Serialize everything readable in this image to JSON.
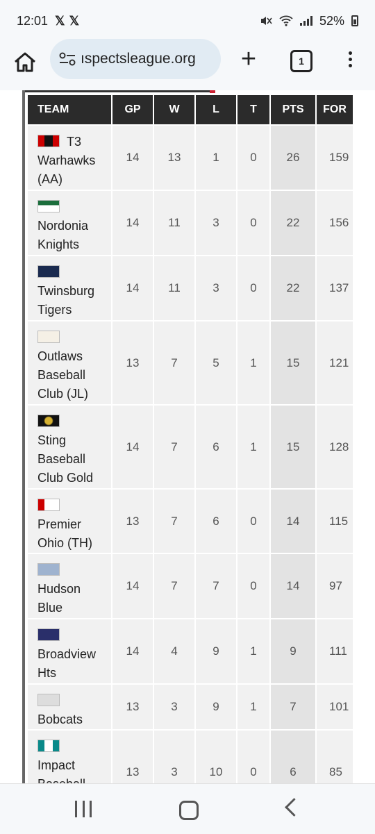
{
  "status_bar": {
    "time": "12:01",
    "x_icons": [
      "𝕏",
      "𝕏"
    ],
    "battery": "52%"
  },
  "browser": {
    "url": "ıspectsleague.org",
    "tab_count": "1",
    "new_tab": "+"
  },
  "table": {
    "headers": [
      "TEAM",
      "GP",
      "W",
      "L",
      "T",
      "PTS",
      "FOR"
    ],
    "rows": [
      {
        "name": "T3 Warhawks (AA)",
        "gp": "14",
        "w": "13",
        "l": "1",
        "t": "0",
        "pts": "26",
        "for": "159"
      },
      {
        "name": "Nordonia Knights",
        "gp": "14",
        "w": "11",
        "l": "3",
        "t": "0",
        "pts": "22",
        "for": "156"
      },
      {
        "name": "Twinsburg Tigers",
        "gp": "14",
        "w": "11",
        "l": "3",
        "t": "0",
        "pts": "22",
        "for": "137"
      },
      {
        "name": "Outlaws Baseball Club (JL)",
        "gp": "13",
        "w": "7",
        "l": "5",
        "t": "1",
        "pts": "15",
        "for": "121"
      },
      {
        "name": "Sting Baseball Club Gold",
        "gp": "14",
        "w": "7",
        "l": "6",
        "t": "1",
        "pts": "15",
        "for": "128"
      },
      {
        "name": "Premier Ohio (TH)",
        "gp": "13",
        "w": "7",
        "l": "6",
        "t": "0",
        "pts": "14",
        "for": "115"
      },
      {
        "name": "Hudson Blue",
        "gp": "14",
        "w": "7",
        "l": "7",
        "t": "0",
        "pts": "14",
        "for": "97"
      },
      {
        "name": "Broadview Hts",
        "gp": "14",
        "w": "4",
        "l": "9",
        "t": "1",
        "pts": "9",
        "for": "111"
      },
      {
        "name": "Bobcats",
        "gp": "13",
        "w": "3",
        "l": "9",
        "t": "1",
        "pts": "7",
        "for": "101"
      },
      {
        "name": "Impact Baseball",
        "gp": "13",
        "w": "3",
        "l": "10",
        "t": "0",
        "pts": "6",
        "for": "85"
      }
    ]
  }
}
